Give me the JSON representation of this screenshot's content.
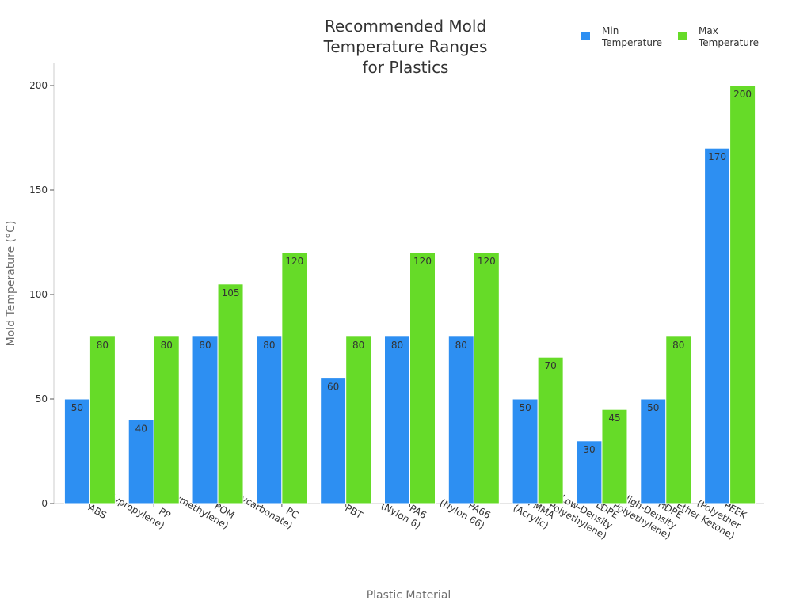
{
  "chart_data": {
    "type": "bar",
    "title_lines": [
      "Recommended Mold",
      "Temperature Ranges",
      "for Plastics"
    ],
    "xlabel": "Plastic Material",
    "ylabel": "Mold Temperature (°C)",
    "ylim": [
      0,
      200
    ],
    "yticks": [
      0,
      50,
      100,
      150,
      200
    ],
    "legend_position": "top-right",
    "categories": [
      [
        "ABS"
      ],
      [
        "PP",
        "(Polypropylene)"
      ],
      [
        "POM",
        "(Polyoxymethylene)"
      ],
      [
        "PC",
        "(Polycarbonate)"
      ],
      [
        "PBT"
      ],
      [
        "PA6",
        "(Nylon 6)"
      ],
      [
        "PA66",
        "(Nylon 66)"
      ],
      [
        "PMMA",
        "(Acrylic)"
      ],
      [
        "LDPE",
        "(Low-Density",
        "Polyethylene)"
      ],
      [
        "HDPE",
        "(High-Density",
        "Polyethylene)"
      ],
      [
        "PEEK",
        "(Polyether",
        "Ether Ketone)"
      ]
    ],
    "series": [
      {
        "name": [
          "Min",
          "Temperature"
        ],
        "color": "#2d8ff2",
        "values": [
          50,
          40,
          80,
          80,
          60,
          80,
          80,
          50,
          30,
          50,
          170
        ]
      },
      {
        "name": [
          "Max",
          "Temperature"
        ],
        "color": "#66db28",
        "values": [
          80,
          80,
          105,
          120,
          80,
          120,
          120,
          70,
          45,
          80,
          200
        ]
      }
    ]
  }
}
